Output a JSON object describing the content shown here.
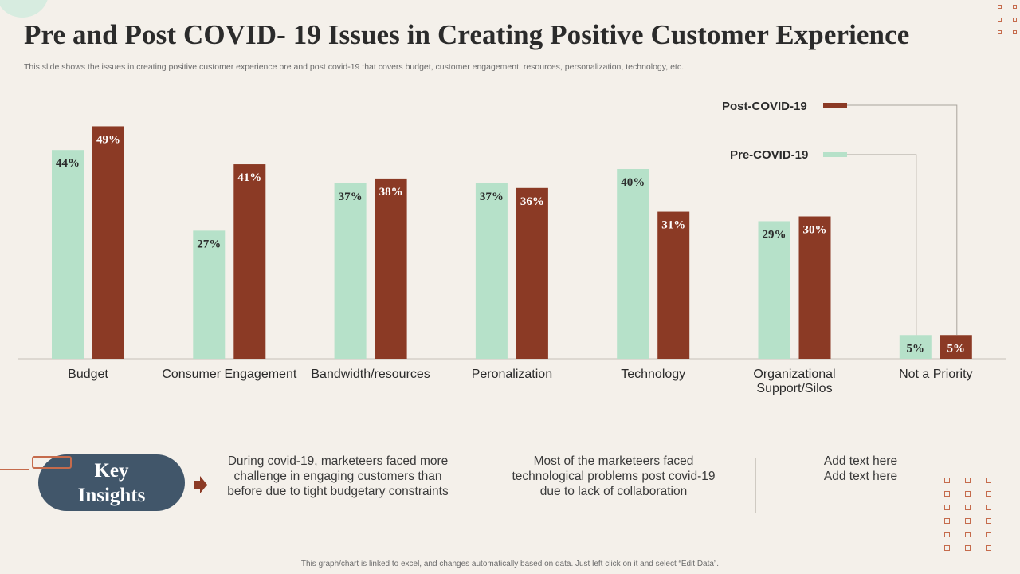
{
  "title": "Pre and Post COVID- 19 Issues in Creating Positive Customer Experience",
  "subtitle": "This slide shows the issues in creating positive customer experience pre and post covid-19 that covers budget, customer engagement, resources, personalization, technology, etc.",
  "colors": {
    "pre": "#b6e1c9",
    "post": "#8b3a25",
    "accent": "#c56b4c",
    "insight_box": "#41566a"
  },
  "chart_data": {
    "type": "bar",
    "title": "",
    "categories": [
      "Budget",
      "Consumer Engagement",
      "Bandwidth/resources",
      "Peronalization",
      "Technology",
      "Organizational Support/Silos",
      "Not a Priority"
    ],
    "series": [
      {
        "name": "Pre-COVID-19",
        "values": [
          44,
          27,
          37,
          37,
          40,
          29,
          5
        ],
        "labels": [
          "44%",
          "27%",
          "37%",
          "37%",
          "40%",
          "29%",
          "5%"
        ]
      },
      {
        "name": "Post-COVID-19",
        "values": [
          49,
          41,
          38,
          36,
          31,
          30,
          5
        ],
        "labels": [
          "49%",
          "41%",
          "38%",
          "36%",
          "31%",
          "30%",
          "5%"
        ]
      }
    ],
    "ylim": [
      0,
      55
    ],
    "xlabel": "",
    "ylabel": "",
    "legend": [
      "Post-COVID-19",
      "Pre-COVID-19"
    ]
  },
  "key_insights": {
    "heading": "Key\nInsights",
    "items": [
      "During covid-19, marketeers faced more challenge in engaging customers than before due to tight budgetary constraints",
      "Most of the marketeers faced technological problems post covid-19 due to lack of collaboration",
      "Add text here\nAdd text here"
    ]
  },
  "footer": "This graph/chart is linked to excel, and changes automatically based on data. Just left click on it and select “Edit Data”."
}
